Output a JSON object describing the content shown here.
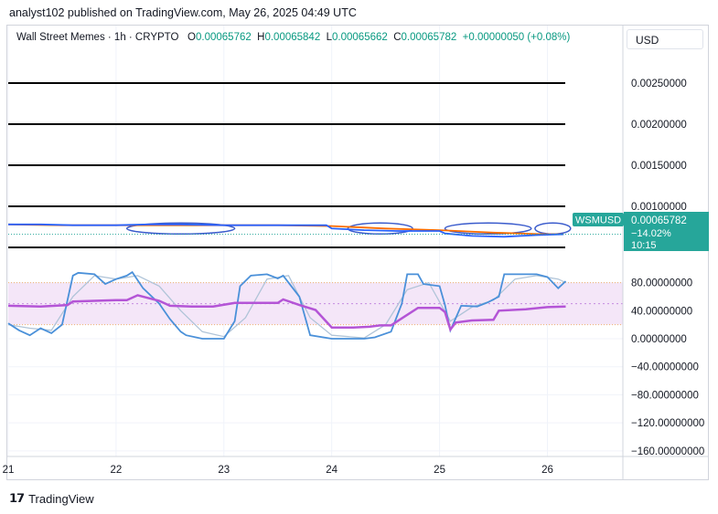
{
  "header": {
    "publisher_line": "analyst102 published on TradingView.com, May 26, 2025 04:49 UTC"
  },
  "legend": {
    "symbol": "Wall Street Memes · 1h · CRYPTO",
    "o_label": "O",
    "o_value": "0.00065762",
    "h_label": "H",
    "h_value": "0.00065842",
    "l_label": "L",
    "l_value": "0.00065662",
    "c_label": "C",
    "c_value": "0.00065782",
    "change": "+0.00000050 (+0.08%)"
  },
  "currency_button": "USD",
  "price_tag": {
    "symbol": "WSMUSD",
    "price": "0.00065782",
    "change": "−14.02%",
    "countdown": "10:15"
  },
  "footer": {
    "brand": "TradingView"
  },
  "chart_data": [
    {
      "type": "line",
      "title": "Wall Street Memes · 1h · CRYPTO",
      "yaxis_tick_labels": [
        "0.00250000",
        "0.00200000",
        "0.00150000",
        "0.00100000"
      ],
      "yaxis_ticks": [
        0.0025,
        0.002,
        0.0015,
        0.001
      ],
      "ylim": [
        0.0004,
        0.0029
      ],
      "xaxis_tick_labels": [
        "21",
        "22",
        "23",
        "24",
        "25",
        "26"
      ],
      "xlim": [
        21,
        26.7
      ],
      "horizontal_levels": [
        0.0025,
        0.002,
        0.0015,
        0.001,
        0.0005
      ],
      "colors": {
        "price": "#2962ff",
        "average": "#ff6d00",
        "bollinger": "#3a5bcc",
        "levels": "#000000",
        "tag": "#26a69a"
      },
      "series": [
        {
          "x": [
            21.0,
            21.3,
            21.6,
            22.0,
            22.3,
            22.6,
            23.0,
            23.3,
            23.6,
            23.95,
            24.0,
            24.3,
            24.6,
            25.0,
            25.05,
            25.3,
            25.6,
            25.9,
            26.15
          ],
          "values": [
            0.00078,
            0.00078,
            0.00077,
            0.00077,
            0.00078,
            0.00078,
            0.00077,
            0.00077,
            0.00077,
            0.00077,
            0.00073,
            0.00071,
            0.0007,
            0.0007,
            0.00067,
            0.00064,
            0.00063,
            0.00065,
            0.00066
          ]
        },
        {
          "x": [
            21.0,
            21.5,
            22.0,
            22.5,
            23.0,
            23.5,
            24.0,
            24.5,
            25.0,
            25.5,
            26.0,
            26.15
          ],
          "values": [
            0.00078,
            0.00077,
            0.00077,
            0.00077,
            0.00077,
            0.00077,
            0.00076,
            0.00073,
            0.00071,
            0.00068,
            0.00066,
            0.00066
          ]
        }
      ]
    },
    {
      "type": "line",
      "yaxis_tick_labels": [
        "80.00000000",
        "40.00000000",
        "0.00000000",
        "−40.00000000",
        "−80.00000000",
        "−120.00000000",
        "−160.00000000"
      ],
      "yaxis_ticks": [
        80,
        40,
        0,
        -40,
        -80,
        -120,
        -160
      ],
      "ylim": [
        -168,
        112
      ],
      "band": [
        20,
        80
      ],
      "midline": 50,
      "xlim": [
        21,
        26.7
      ],
      "colors": {
        "stoch_k": "#4a90d9",
        "stoch_d": "#b0c4d8",
        "rsi": "#b455d6",
        "band_fill": "#f4e6f8",
        "band_edge": "#f0b070"
      },
      "series": [
        {
          "x": [
            21.0,
            21.1,
            21.2,
            21.3,
            21.4,
            21.5,
            21.6,
            21.65,
            21.8,
            21.9,
            22.0,
            22.1,
            22.15,
            22.25,
            22.4,
            22.5,
            22.6,
            22.65,
            22.8,
            23.0,
            23.1,
            23.15,
            23.25,
            23.4,
            23.5,
            23.55,
            23.7,
            23.8,
            24.0,
            24.3,
            24.4,
            24.55,
            24.65,
            24.7,
            24.8,
            24.85,
            25.0,
            25.05,
            25.1,
            25.2,
            25.35,
            25.45,
            25.55,
            25.6,
            25.7,
            25.9,
            26.0,
            26.1,
            26.17
          ],
          "values": [
            22,
            12,
            5,
            15,
            8,
            20,
            90,
            94,
            92,
            78,
            85,
            90,
            95,
            72,
            50,
            28,
            10,
            5,
            0,
            0,
            25,
            75,
            90,
            92,
            86,
            90,
            60,
            5,
            0,
            0,
            2,
            10,
            50,
            92,
            92,
            78,
            75,
            48,
            12,
            47,
            46,
            52,
            60,
            92,
            92,
            92,
            88,
            72,
            82
          ]
        },
        {
          "x": [
            21.0,
            21.2,
            21.4,
            21.6,
            21.8,
            22.0,
            22.2,
            22.4,
            22.6,
            22.8,
            23.0,
            23.2,
            23.4,
            23.6,
            23.8,
            24.0,
            24.3,
            24.5,
            24.7,
            24.9,
            25.1,
            25.3,
            25.5,
            25.7,
            25.9,
            26.1,
            26.17
          ],
          "values": [
            20,
            15,
            12,
            60,
            90,
            85,
            90,
            75,
            40,
            10,
            3,
            30,
            85,
            90,
            30,
            5,
            1,
            20,
            70,
            80,
            25,
            45,
            55,
            85,
            90,
            85,
            80
          ]
        },
        {
          "x": [
            21.0,
            21.3,
            21.55,
            21.6,
            21.8,
            22.0,
            22.1,
            22.2,
            22.4,
            22.5,
            22.7,
            22.9,
            23.1,
            23.3,
            23.5,
            23.55,
            23.7,
            23.85,
            24.0,
            24.2,
            24.35,
            24.45,
            24.55,
            24.65,
            24.8,
            25.0,
            25.05,
            25.1,
            25.15,
            25.3,
            25.5,
            25.55,
            25.8,
            26.0,
            26.17
          ],
          "values": [
            47,
            46,
            48,
            53,
            54,
            55,
            55,
            62,
            54,
            47,
            46,
            46,
            51,
            51,
            51,
            56,
            48,
            41,
            16,
            16,
            17,
            19,
            19,
            29,
            44,
            44,
            38,
            13,
            23,
            26,
            27,
            40,
            42,
            45,
            46
          ]
        }
      ]
    }
  ]
}
